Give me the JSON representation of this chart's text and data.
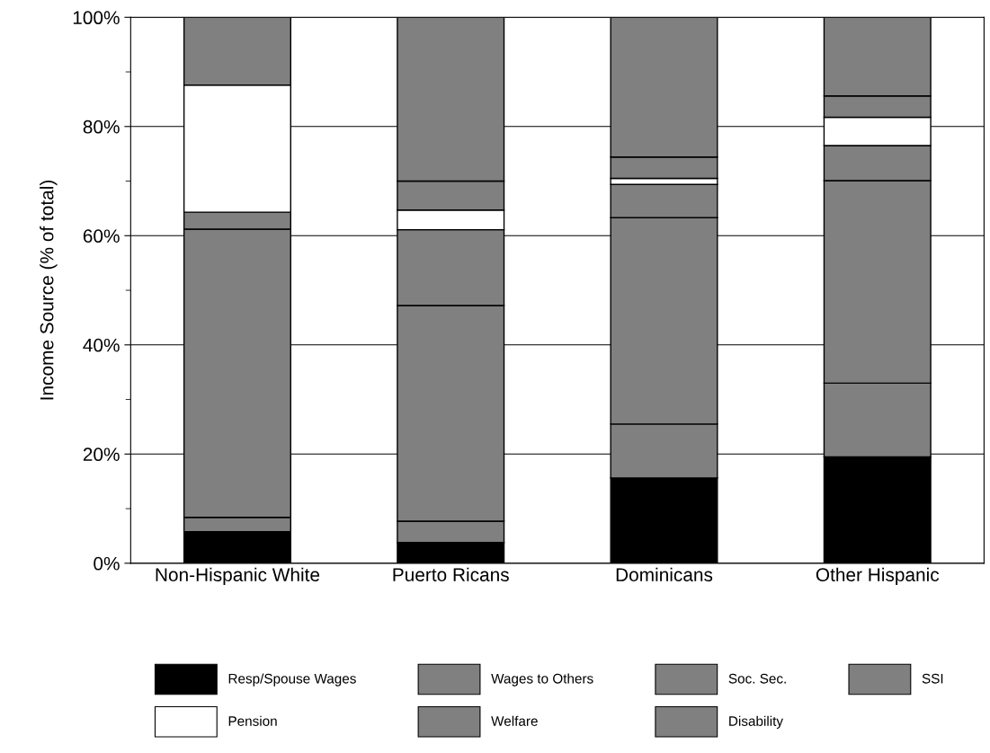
{
  "chart_data": {
    "type": "bar",
    "stacked": true,
    "ylabel": "Income Source (% of total)",
    "categories": [
      "Non-Hispanic White",
      "Puerto Ricans",
      "Dominicans",
      "Other Hispanic"
    ],
    "series": [
      {
        "name": "Resp/Spouse Wages",
        "color": "#000000",
        "values": [
          5.8,
          3.8,
          15.6,
          19.5
        ]
      },
      {
        "name": "Wages to Others",
        "color": "#808080",
        "values": [
          2.6,
          3.9,
          9.9,
          13.5
        ]
      },
      {
        "name": "Soc. Sec.",
        "color": "#808080",
        "values": [
          52.8,
          39.5,
          37.8,
          37.1
        ]
      },
      {
        "name": "SSI",
        "color": "#808080",
        "values": [
          3.1,
          13.9,
          6.1,
          6.4
        ]
      },
      {
        "name": "Pension",
        "color": "#ffffff",
        "values": [
          23.3,
          3.6,
          1.1,
          5.2
        ]
      },
      {
        "name": "Welfare",
        "color": "#808080",
        "values": [
          0,
          5.3,
          3.9,
          3.9
        ]
      },
      {
        "name": "Disability",
        "color": "#808080",
        "values": [
          12.4,
          30.0,
          25.6,
          14.4
        ]
      }
    ],
    "ylim": [
      0,
      100
    ],
    "yticks": [
      {
        "value": 0,
        "label": "0%"
      },
      {
        "value": 10,
        "label": null
      },
      {
        "value": 20,
        "label": "20%"
      },
      {
        "value": 30,
        "label": null
      },
      {
        "value": 40,
        "label": "40%"
      },
      {
        "value": 50,
        "label": null
      },
      {
        "value": 60,
        "label": "60%"
      },
      {
        "value": 70,
        "label": null
      },
      {
        "value": 80,
        "label": "80%"
      },
      {
        "value": 90,
        "label": null
      },
      {
        "value": 100,
        "label": "100%"
      }
    ],
    "grid": "y",
    "legend": "bottom"
  }
}
